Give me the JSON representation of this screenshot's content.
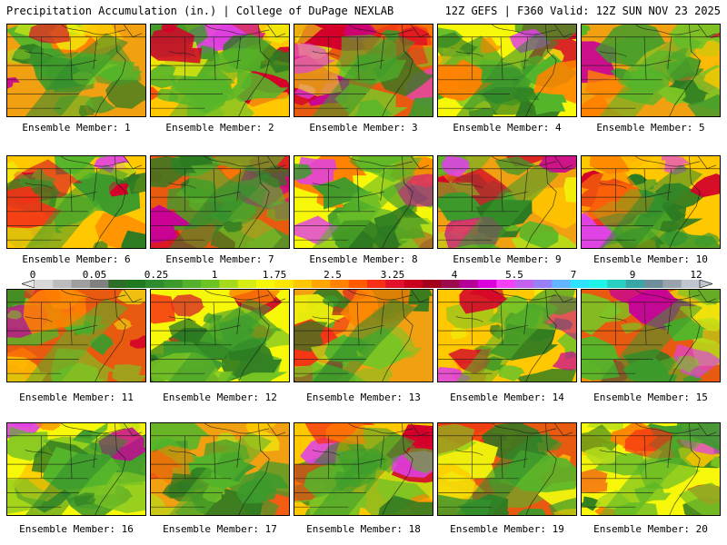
{
  "header": {
    "left": "Precipitation Accumulation (in.) | College of DuPage NEXLAB",
    "right": "12Z GEFS | F360 Valid: 12Z SUN NOV 23 2025"
  },
  "colorbar": {
    "ticks": [
      "0",
      "0.05",
      "0.25",
      "1",
      "1.75",
      "2.5",
      "3.25",
      "4",
      "5.5",
      "7",
      "9",
      "12"
    ],
    "colors": [
      "#d8d8d8",
      "#bcbcbc",
      "#9e9e9e",
      "#808080",
      "#2c6e28",
      "#1f7a1f",
      "#2e8b2e",
      "#3c9a2c",
      "#52b02a",
      "#6cc324",
      "#a6d81c",
      "#d7ec12",
      "#f7f70a",
      "#ffe600",
      "#ffc800",
      "#ffa600",
      "#ff8200",
      "#ff5a00",
      "#f53016",
      "#e2102a",
      "#c8001e",
      "#a4001c",
      "#9a0a4c",
      "#b40096",
      "#dc00dc",
      "#f640f6",
      "#c462f0",
      "#9a80f8",
      "#62b6ff",
      "#2ce2ff",
      "#1ef4e8",
      "#28d0c2",
      "#3aa6a6",
      "#6e8e9c",
      "#9aa2ae",
      "#c0c6ce"
    ]
  },
  "panels": [
    {
      "label": "Ensemble Member: 1"
    },
    {
      "label": "Ensemble Member: 2"
    },
    {
      "label": "Ensemble Member: 3"
    },
    {
      "label": "Ensemble Member: 4"
    },
    {
      "label": "Ensemble Member: 5"
    },
    {
      "label": "Ensemble Member: 6"
    },
    {
      "label": "Ensemble Member: 7"
    },
    {
      "label": "Ensemble Member: 8"
    },
    {
      "label": "Ensemble Member: 9"
    },
    {
      "label": "Ensemble Member: 10"
    },
    {
      "label": "Ensemble Member: 11"
    },
    {
      "label": "Ensemble Member: 12"
    },
    {
      "label": "Ensemble Member: 13"
    },
    {
      "label": "Ensemble Member: 14"
    },
    {
      "label": "Ensemble Member: 15"
    },
    {
      "label": "Ensemble Member: 16"
    },
    {
      "label": "Ensemble Member: 17"
    },
    {
      "label": "Ensemble Member: 18"
    },
    {
      "label": "Ensemble Member: 19"
    },
    {
      "label": "Ensemble Member: 20"
    }
  ]
}
